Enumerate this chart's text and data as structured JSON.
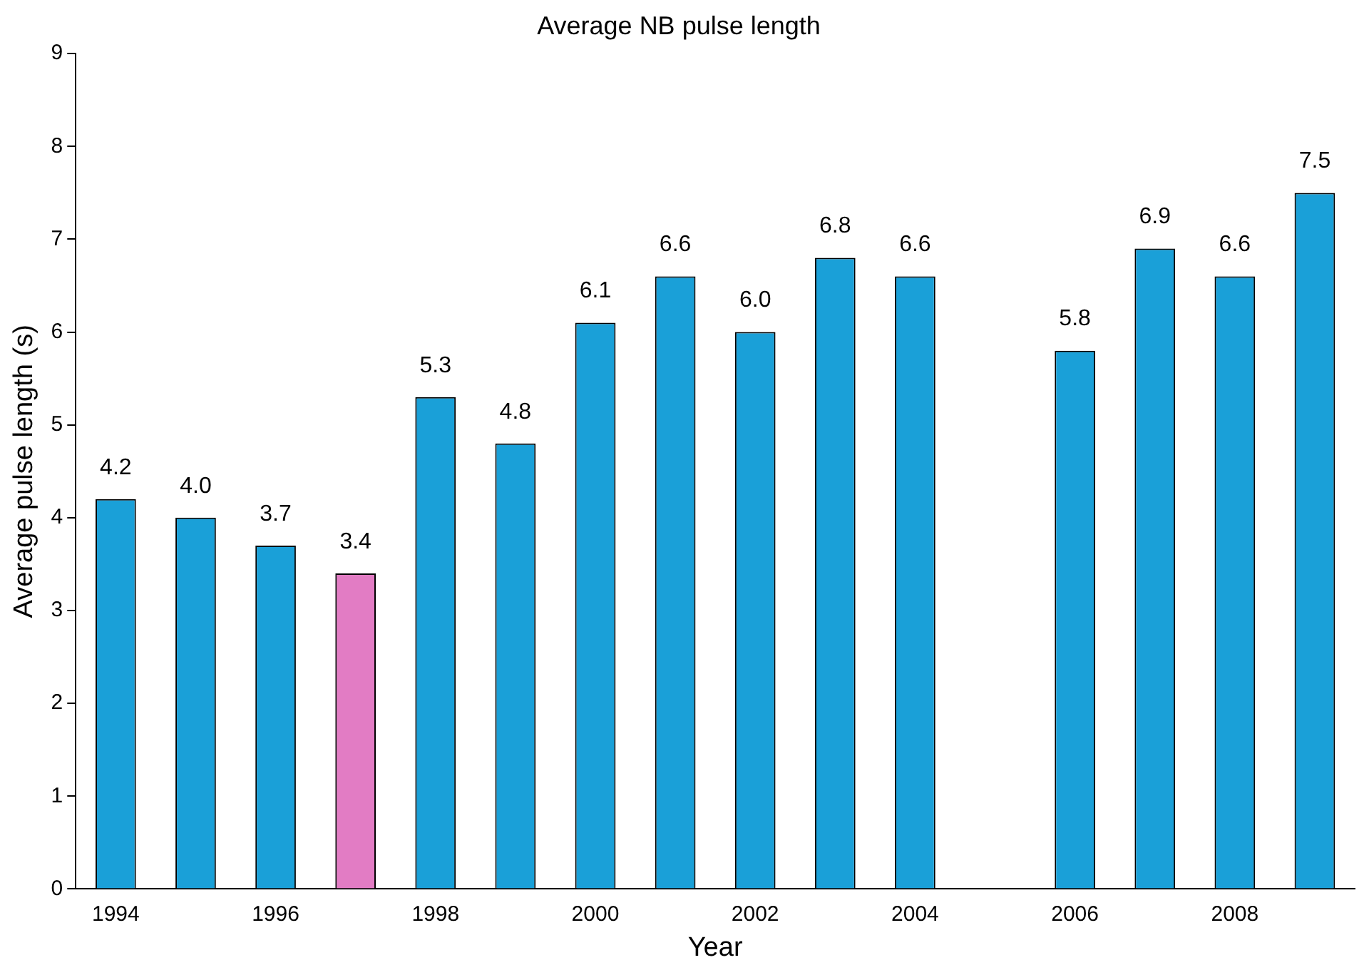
{
  "chart_data": {
    "type": "bar",
    "title": "Average NB pulse length",
    "xlabel": "Year",
    "ylabel": "Average pulse length (s)",
    "categories": [
      "1994",
      null,
      "1996",
      null,
      "1998",
      null,
      "2000",
      null,
      "2002",
      null,
      "2004",
      null,
      "2006",
      null,
      "2008",
      null
    ],
    "values": [
      4.2,
      4.0,
      3.7,
      3.4,
      5.3,
      4.8,
      6.1,
      6.6,
      6.0,
      6.8,
      6.6,
      null,
      5.8,
      6.9,
      6.6,
      7.5
    ],
    "colors": [
      "#1aa0d8",
      "#1aa0d8",
      "#1aa0d8",
      "#e27cc4",
      "#1aa0d8",
      "#1aa0d8",
      "#1aa0d8",
      "#1aa0d8",
      "#1aa0d8",
      "#1aa0d8",
      "#1aa0d8",
      "#1aa0d8",
      "#1aa0d8",
      "#1aa0d8",
      "#1aa0d8",
      "#1aa0d8"
    ],
    "value_labels": [
      "4.2",
      "4.0",
      "3.7",
      "3.4",
      "5.3",
      "4.8",
      "6.1",
      "6.6",
      "6.0",
      "6.8",
      "6.6",
      null,
      "5.8",
      "6.9",
      "6.6",
      "7.5"
    ],
    "ylim": [
      0,
      9
    ],
    "yticks": [
      0,
      1,
      2,
      3,
      4,
      5,
      6,
      7,
      8,
      9
    ],
    "grid": false,
    "legend": false
  }
}
